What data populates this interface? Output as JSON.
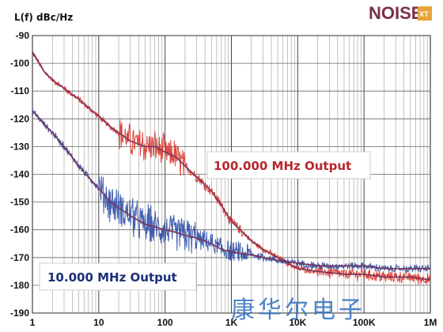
{
  "logo": {
    "main": "NOISE",
    "sub": "XT"
  },
  "watermark": "康华尔电子",
  "colors": {
    "red": "#d9352b",
    "blue": "#2e4ea6",
    "fit": "#7a3357",
    "label_red": "#b8262c",
    "label_blue": "#1c2f7a",
    "grid": "#888888",
    "logo_main": "#7b2f4a",
    "logo_box": "#e8a63a"
  },
  "chart_data": {
    "type": "line",
    "ylabel": "L(f) dBc/Hz",
    "xscale": "log",
    "xlim": [
      1,
      1000000
    ],
    "ylim": [
      -190,
      -90
    ],
    "grid": true,
    "xticks": [
      {
        "v": 1,
        "t": "1"
      },
      {
        "v": 10,
        "t": "10"
      },
      {
        "v": 100,
        "t": "100"
      },
      {
        "v": 1000,
        "t": "1K"
      },
      {
        "v": 10000,
        "t": "10K"
      },
      {
        "v": 100000,
        "t": "100K"
      },
      {
        "v": 1000000,
        "t": "1M"
      }
    ],
    "yticks": [
      -90,
      -100,
      -110,
      -120,
      -130,
      -140,
      -150,
      -160,
      -170,
      -180,
      -190
    ],
    "annotations": [
      {
        "text": "100.000 MHz Output",
        "series": "100.000 MHz Output"
      },
      {
        "text": "10.000 MHz Output",
        "series": "10.000 MHz Output"
      }
    ],
    "series": [
      {
        "name": "100.000 MHz Output",
        "color": "#d9352b",
        "x": [
          1,
          1.5,
          2,
          3,
          5,
          7,
          10,
          15,
          20,
          30,
          50,
          70,
          100,
          150,
          200,
          300,
          500,
          700,
          1000,
          1500,
          2000,
          3000,
          5000,
          7000,
          10000,
          20000,
          50000,
          100000,
          200000,
          500000,
          1000000
        ],
        "y": [
          -96,
          -103,
          -106,
          -109,
          -113,
          -116,
          -119,
          -123,
          -125,
          -128,
          -130,
          -130,
          -132,
          -134,
          -137,
          -141,
          -146,
          -151,
          -157,
          -161,
          -164,
          -167,
          -170,
          -172,
          -174,
          -175,
          -176,
          -176,
          -177,
          -177,
          -178
        ]
      },
      {
        "name": "10.000 MHz Output",
        "color": "#2e4ea6",
        "x": [
          1,
          1.5,
          2,
          3,
          5,
          7,
          10,
          15,
          20,
          30,
          50,
          70,
          100,
          150,
          200,
          300,
          500,
          700,
          1000,
          2000,
          3000,
          5000,
          10000,
          20000,
          50000,
          100000,
          200000,
          500000,
          1000000
        ],
        "y": [
          -117,
          -122,
          -125,
          -130,
          -137,
          -141,
          -145,
          -150,
          -152,
          -155,
          -158,
          -159,
          -160,
          -161,
          -162,
          -163,
          -165,
          -167,
          -168,
          -169,
          -170,
          -171,
          -172,
          -173,
          -173,
          -173,
          -174,
          -174,
          -174
        ]
      }
    ]
  }
}
